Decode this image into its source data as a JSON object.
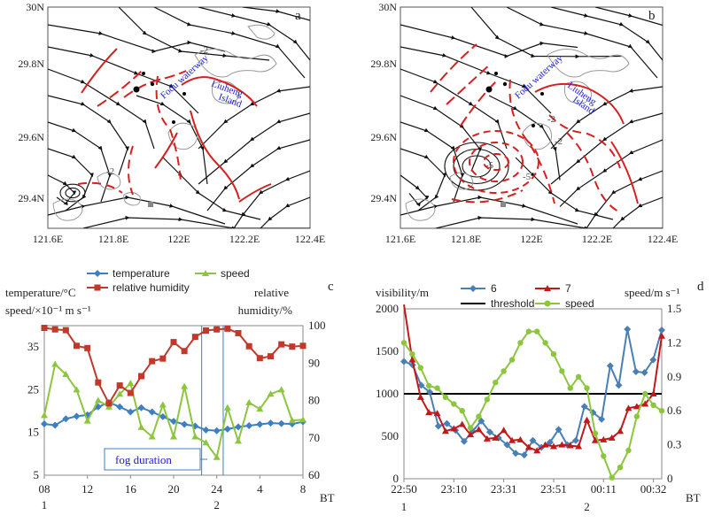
{
  "panels": {
    "a": "a",
    "b": "b",
    "c": "c",
    "d": "d"
  },
  "map": {
    "lat_ticks": [
      "30N",
      "29.8N",
      "29.6N",
      "29.4N"
    ],
    "lon_ticks": [
      "121.6E",
      "121.8E",
      "122E",
      "122.2E",
      "122.4E"
    ],
    "label_waterway": "Fodu waterway",
    "label_island_1": "Liuheng",
    "label_island_2": "Island",
    "label_minus2": "-2",
    "label_minus5": "-5",
    "streamline_color": "#111111",
    "contour_color": "#d62020",
    "terrain_color": "#9a9a9a"
  },
  "chart_data": [
    {
      "type": "line",
      "panel": "c",
      "left_axis_label_1": "temperature/°C",
      "left_axis_label_2": "speed/×10⁻¹ m s⁻¹",
      "right_axis_label_1": "relative",
      "right_axis_label_2": "humidity/%",
      "x_unit": "BT",
      "x_tick_labels": [
        "08",
        "12",
        "16",
        "20",
        "24",
        "4",
        "8"
      ],
      "x_day_labels": [
        "1",
        "2"
      ],
      "x_tick_hours": [
        0,
        4,
        8,
        12,
        16,
        20,
        24
      ],
      "y_left_ticks": [
        "5",
        "15",
        "25",
        "35"
      ],
      "y_right_ticks": [
        "60",
        "70",
        "80",
        "90",
        "100"
      ],
      "y_left_lim": [
        5,
        40
      ],
      "y_right_lim": [
        60,
        100
      ],
      "annotation": "fog duration",
      "fog_start_hour": 14.6,
      "fog_end_hour": 16.6,
      "x_hours": [
        0,
        1,
        2,
        3,
        4,
        5,
        6,
        7,
        8,
        9,
        10,
        11,
        12,
        13,
        14,
        15,
        16,
        17,
        18,
        19,
        20,
        21,
        22,
        23,
        24
      ],
      "series": [
        {
          "name": "temperature",
          "axis": "left",
          "color": "#3d7fc1",
          "marker": "diamond",
          "values": [
            17,
            16.7,
            18.2,
            18.8,
            19.1,
            21,
            22,
            21,
            19.8,
            20.8,
            19.8,
            18.7,
            17.6,
            16.9,
            16.5,
            15.6,
            15.4,
            15.8,
            16.3,
            16.6,
            16.9,
            17.2,
            17.1,
            17,
            17.5
          ]
        },
        {
          "name": "speed",
          "axis": "left",
          "color": "#8cc63e",
          "marker": "triangle",
          "values": [
            19,
            31,
            28.6,
            25,
            17.7,
            22.5,
            21,
            24,
            26.5,
            16.2,
            14,
            21.5,
            14,
            25.8,
            14,
            12.6,
            9.2,
            20.8,
            13,
            22,
            20.5,
            24,
            25,
            17.8,
            18
          ]
        },
        {
          "name": "relative humidity",
          "axis": "right",
          "color": "#c0392b",
          "marker": "square",
          "values": [
            99.4,
            99,
            98.8,
            94.6,
            94,
            84.8,
            79.2,
            84,
            82,
            86.5,
            90.5,
            91.2,
            95.6,
            93.2,
            97,
            98.7,
            99,
            99.2,
            98,
            94.5,
            91.3,
            91.8,
            95,
            94.4,
            94.6
          ]
        }
      ]
    },
    {
      "type": "line",
      "panel": "d",
      "left_axis_label": "visibility/m",
      "right_axis_label": "speed/m s⁻¹",
      "x_unit": "BT",
      "x_tick_labels": [
        "22:50",
        "23:10",
        "23:31",
        "23:51",
        "00:11",
        "00:32"
      ],
      "x_day_labels": [
        "1",
        "2"
      ],
      "y_left_ticks": [
        "0",
        "500",
        "1000",
        "1500",
        "2000"
      ],
      "y_right_ticks": [
        "0",
        "0.3",
        "0.6",
        "0.9",
        "1.2",
        "1.5"
      ],
      "y_left_lim": [
        0,
        2000
      ],
      "y_right_lim": [
        0,
        1.5
      ],
      "threshold": 1000,
      "x_index": [
        0,
        1,
        2,
        3,
        4,
        5,
        6,
        7,
        8,
        9,
        10,
        11,
        12,
        13,
        14,
        15,
        16,
        17,
        18,
        19,
        20,
        21,
        22,
        23,
        24,
        25,
        26,
        27,
        28,
        29,
        30,
        31,
        32,
        33,
        34
      ],
      "series": [
        {
          "name": "6",
          "axis": "left",
          "color": "#4a7fb5",
          "marker": "diamond",
          "values": [
            1380,
            1340,
            1100,
            1020,
            620,
            650,
            570,
            440,
            560,
            680,
            550,
            480,
            400,
            300,
            280,
            450,
            370,
            430,
            580,
            400,
            450,
            850,
            780,
            700,
            1330,
            1100,
            1760,
            1260,
            1250,
            1400,
            1750
          ]
        },
        {
          "name": "7",
          "axis": "left",
          "color": "#c0191b",
          "marker": "triangle",
          "values": [
            2050,
            1400,
            960,
            780,
            770,
            560,
            590,
            640,
            520,
            580,
            470,
            480,
            570,
            450,
            460,
            370,
            330,
            400,
            380,
            400,
            390,
            380,
            690,
            450,
            460,
            480,
            560,
            830,
            850,
            880,
            1000,
            1680
          ]
        },
        {
          "name": "threshold",
          "axis": "left",
          "color": "#000000",
          "marker": "none",
          "values": [
            1000
          ]
        },
        {
          "name": "speed",
          "axis": "right",
          "color": "#8cc63e",
          "marker": "circle",
          "values": [
            1.2,
            1.1,
            0.98,
            0.82,
            0.8,
            0.72,
            0.66,
            0.6,
            0.45,
            0.55,
            0.7,
            0.85,
            0.95,
            1.05,
            1.2,
            1.3,
            1.3,
            1.2,
            1.1,
            0.95,
            0.8,
            0.9,
            0.8,
            0.4,
            0.2,
            0.01,
            0.1,
            0.25,
            0.55,
            0.75,
            0.65,
            0.6
          ]
        }
      ]
    }
  ]
}
